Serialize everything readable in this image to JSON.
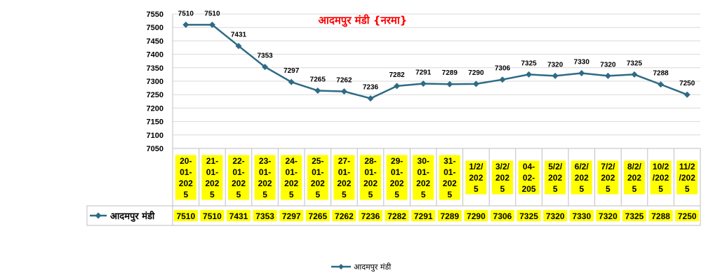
{
  "chart_data": {
    "type": "line",
    "title": "आदमपुर मंडी {नरमा}",
    "categories": [
      [
        "20-",
        "01-",
        "202",
        "5"
      ],
      [
        "21-",
        "01-",
        "202",
        "5"
      ],
      [
        "22-",
        "01-",
        "202",
        "5"
      ],
      [
        "23-",
        "01-",
        "202",
        "5"
      ],
      [
        "24-",
        "01-",
        "202",
        "5"
      ],
      [
        "25-",
        "01-",
        "202",
        "5"
      ],
      [
        "27-",
        "01-",
        "202",
        "5"
      ],
      [
        "28-",
        "01-",
        "202",
        "5"
      ],
      [
        "29-",
        "01-",
        "202",
        "5"
      ],
      [
        "30-",
        "01-",
        "202",
        "5"
      ],
      [
        "31-",
        "01-",
        "202",
        "5"
      ],
      [
        "1/2/",
        "202",
        "5"
      ],
      [
        "3/2/",
        "202",
        "5"
      ],
      [
        "04-",
        "02-",
        "205"
      ],
      [
        "5/2/",
        "202",
        "5"
      ],
      [
        "6/2/",
        "202",
        "5"
      ],
      [
        "7/2/",
        "202",
        "5"
      ],
      [
        "8/2/",
        "202",
        "5"
      ],
      [
        "10/2",
        "/202",
        "5"
      ],
      [
        "11/2",
        "/202",
        "5"
      ]
    ],
    "series": [
      {
        "name": "आदमपुर मंडी",
        "values": [
          7510,
          7510,
          7431,
          7353,
          7297,
          7265,
          7262,
          7236,
          7282,
          7291,
          7289,
          7290,
          7306,
          7325,
          7320,
          7330,
          7320,
          7325,
          7288,
          7250
        ],
        "color": "#2e6b84"
      }
    ],
    "yticks": [
      7050,
      7100,
      7150,
      7200,
      7250,
      7300,
      7350,
      7400,
      7450,
      7500,
      7550
    ],
    "ylim": [
      7050,
      7550
    ],
    "grid": true,
    "legend": "bottom",
    "category_highlight": "#ffff00",
    "data_table": true
  }
}
